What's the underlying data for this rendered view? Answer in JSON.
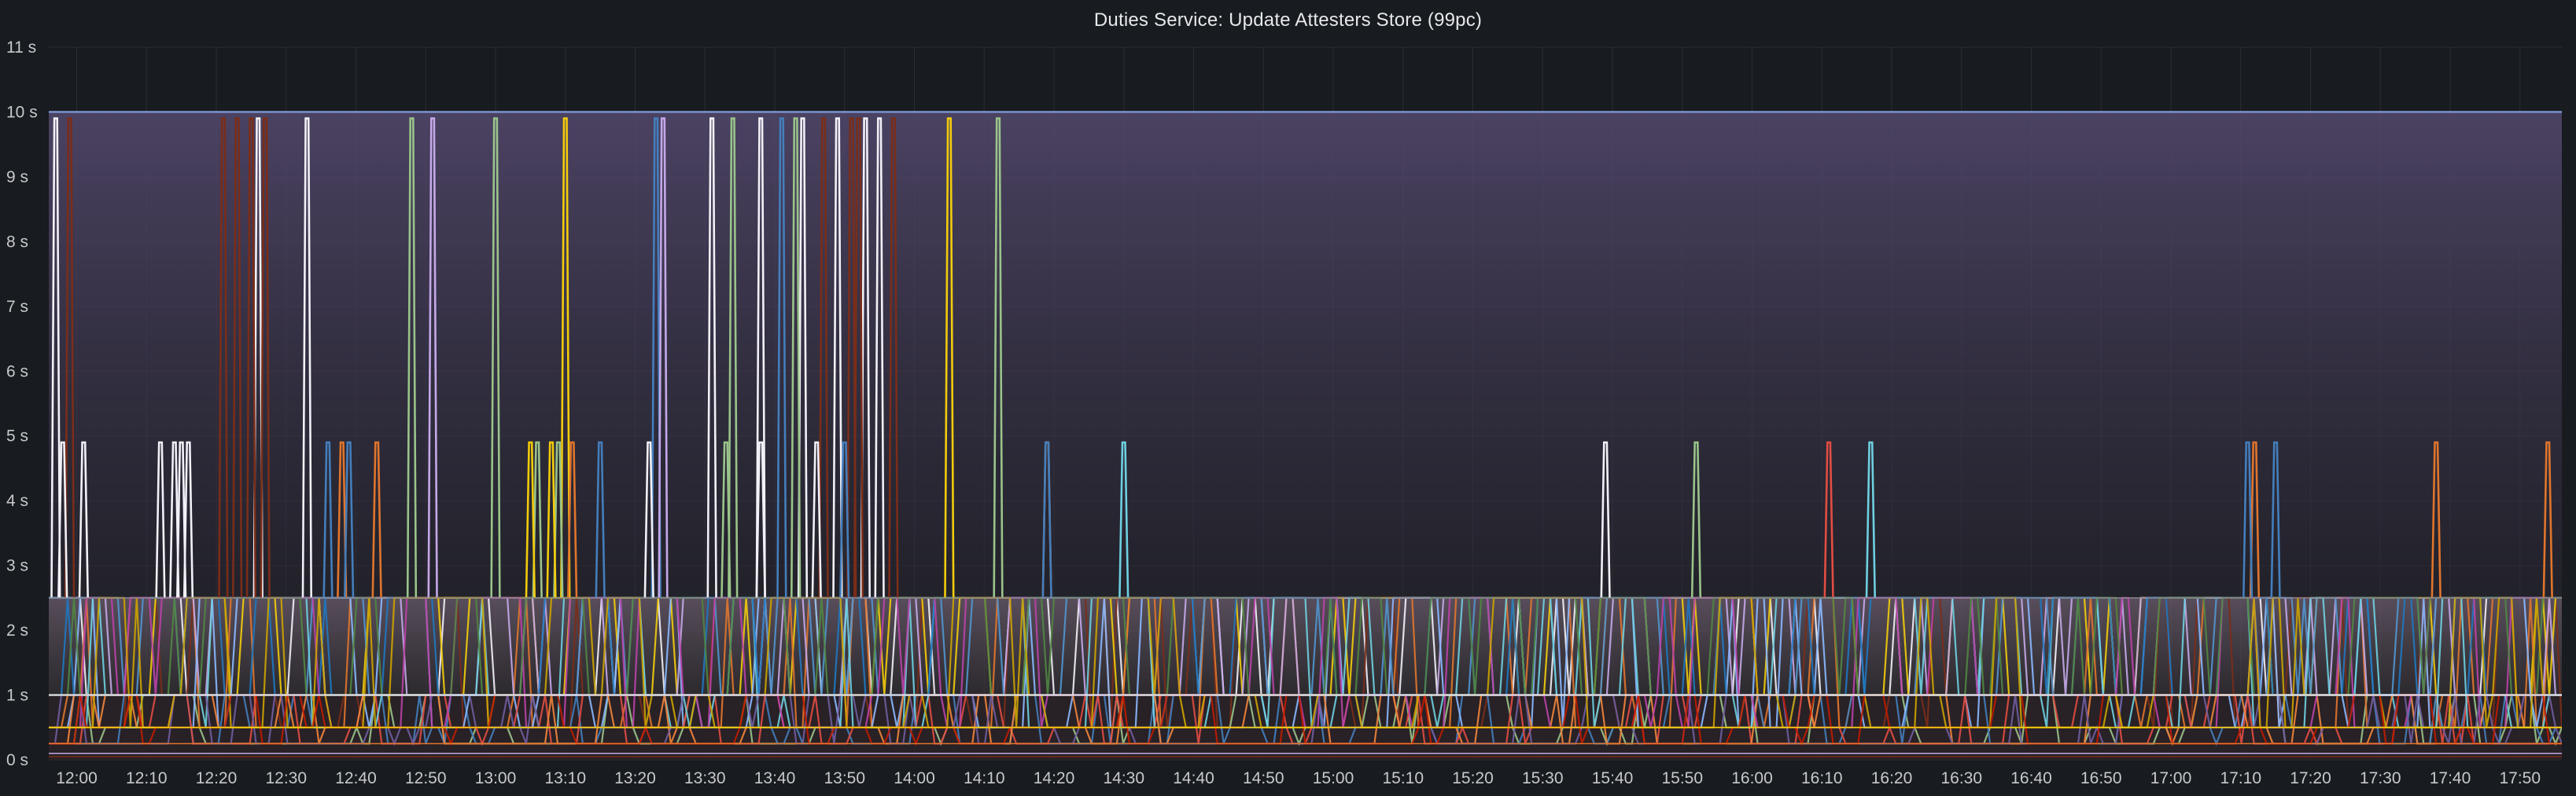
{
  "panel": {
    "title": "Duties Service: Update Attesters Store (99pc)"
  },
  "colors": {
    "background": "#181b1f",
    "grid": "#2a2d33",
    "threshold_line": "#7d96d6",
    "band_fill_top": "#54496e",
    "low_band_fill": "#6e5f70",
    "series_palette": [
      "#f2f0f7",
      "#7a2d19",
      "#9ac48a",
      "#f2cc0c",
      "#e0752d",
      "#447ebc",
      "#c4a8e8",
      "#8ab8ff",
      "#e24d42",
      "#5195ce",
      "#6ed0e0",
      "#ef843c",
      "#1f78c1",
      "#ba43a9",
      "#705da0",
      "#508642",
      "#cca300",
      "#bf1b00"
    ]
  },
  "chart_data": {
    "type": "line",
    "title": "Duties Service: Update Attesters Store (99pc)",
    "y_unit": "s",
    "ylim": [
      0,
      11
    ],
    "y_ticks": [
      "0 s",
      "1 s",
      "2 s",
      "3 s",
      "4 s",
      "5 s",
      "6 s",
      "7 s",
      "8 s",
      "9 s",
      "10 s",
      "11 s"
    ],
    "x_range": [
      "11:56",
      "17:56"
    ],
    "x_ticks": [
      "12:00",
      "12:10",
      "12:20",
      "12:30",
      "12:40",
      "12:50",
      "13:00",
      "13:10",
      "13:20",
      "13:30",
      "13:40",
      "13:50",
      "14:00",
      "14:10",
      "14:20",
      "14:30",
      "14:40",
      "14:50",
      "15:00",
      "15:10",
      "15:20",
      "15:30",
      "15:40",
      "15:50",
      "16:00",
      "16:10",
      "16:20",
      "16:30",
      "16:40",
      "16:50",
      "17:00",
      "17:10",
      "17:20",
      "17:30",
      "17:40",
      "17:50"
    ],
    "grid": true,
    "legend": "none",
    "bucket_levels": [
      0.05,
      0.1,
      0.25,
      0.5,
      1,
      2.5,
      5,
      10
    ],
    "series_count": 18,
    "spikes_to_10s": [
      {
        "series": 0,
        "times": [
          "11:57",
          "12:26",
          "12:33",
          "13:31",
          "13:38",
          "13:44",
          "13:49",
          "13:53",
          "13:55"
        ]
      },
      {
        "series": 1,
        "times": [
          "11:59",
          "12:21",
          "12:23",
          "12:25",
          "12:27",
          "13:47",
          "13:51",
          "13:52",
          "13:57"
        ]
      },
      {
        "series": 2,
        "times": [
          "12:48",
          "13:00",
          "13:34",
          "13:43",
          "14:12"
        ]
      },
      {
        "series": 3,
        "times": [
          "13:10",
          "14:05"
        ]
      },
      {
        "series": 5,
        "times": [
          "13:23",
          "13:41"
        ]
      },
      {
        "series": 6,
        "times": [
          "12:51",
          "13:24"
        ]
      }
    ],
    "spikes_to_5s": [
      {
        "series": 0,
        "times": [
          "11:58",
          "12:01",
          "12:12",
          "12:14",
          "12:15",
          "12:16",
          "13:22",
          "13:38",
          "13:46",
          "15:39"
        ]
      },
      {
        "series": 2,
        "times": [
          "13:06",
          "13:09",
          "13:33",
          "15:52"
        ]
      },
      {
        "series": 3,
        "times": [
          "13:05",
          "13:08"
        ]
      },
      {
        "series": 4,
        "times": [
          "12:38",
          "12:43",
          "13:11",
          "14:19",
          "17:12",
          "17:38",
          "17:54"
        ]
      },
      {
        "series": 5,
        "times": [
          "12:36",
          "12:39",
          "13:15",
          "13:50",
          "14:19",
          "17:11",
          "17:15"
        ]
      },
      {
        "series": 8,
        "times": [
          "16:11"
        ]
      },
      {
        "series": 10,
        "times": [
          "14:30",
          "16:17"
        ]
      }
    ]
  }
}
